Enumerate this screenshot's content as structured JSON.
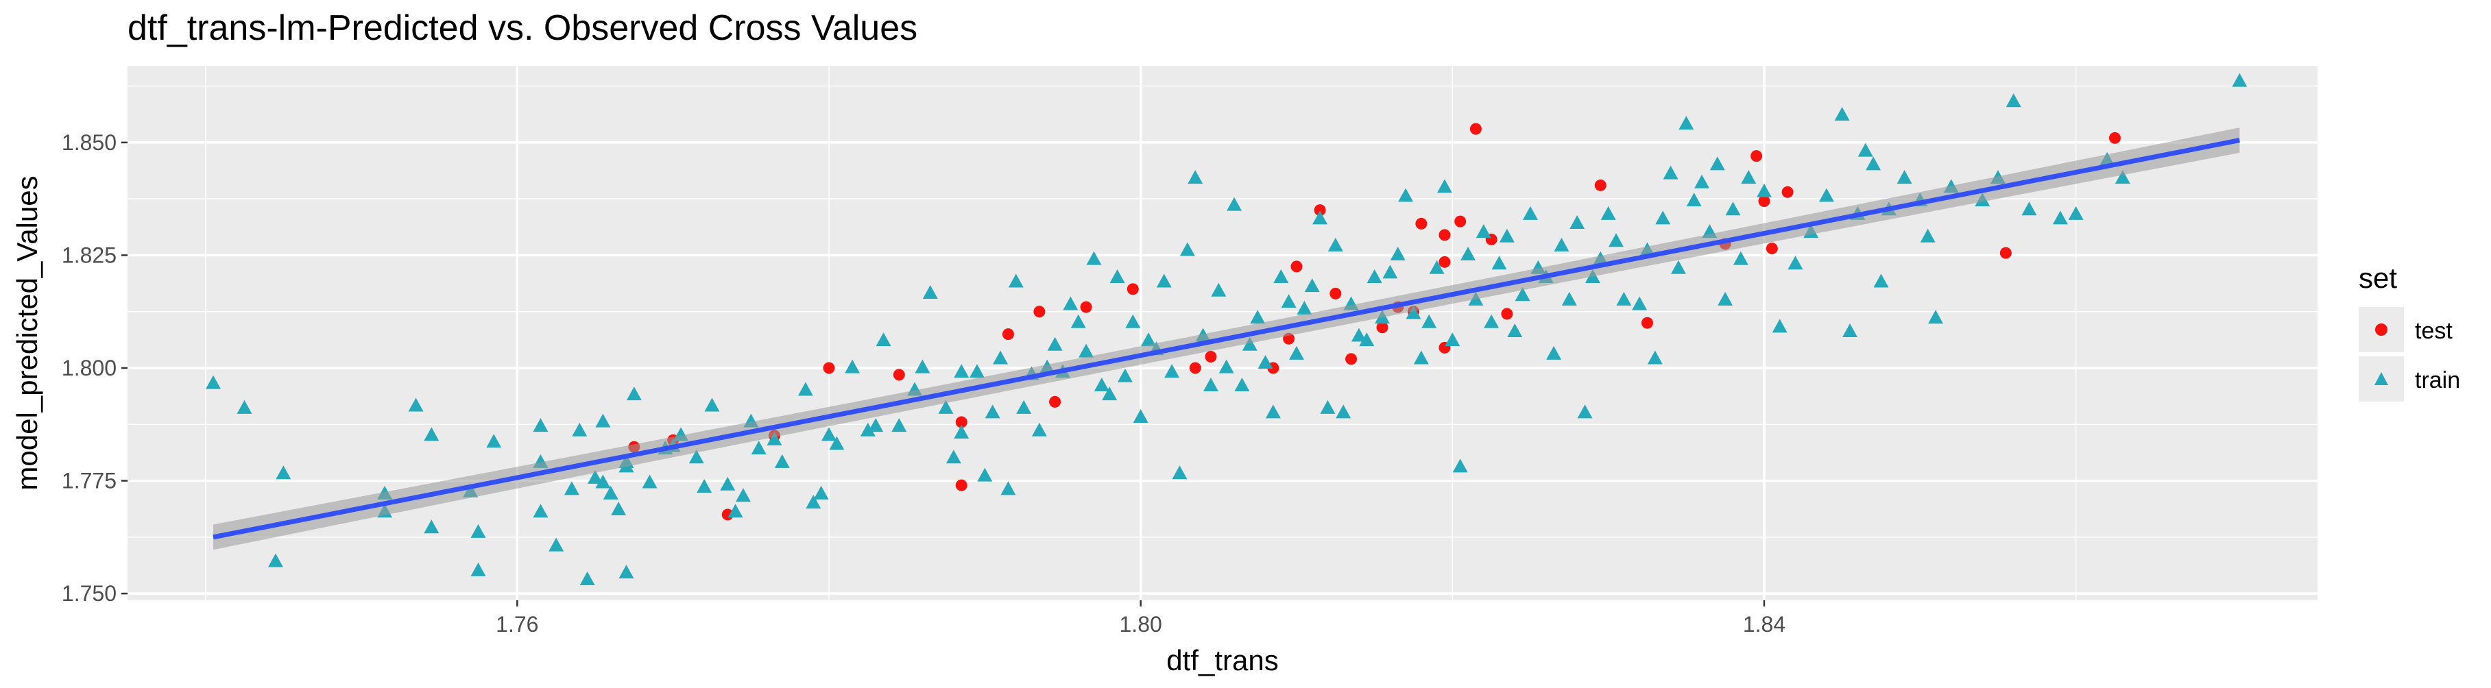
{
  "chart_data": {
    "type": "scatter",
    "title": "dtf_trans-lm-Predicted vs. Observed Cross Values",
    "xlabel": "dtf_trans",
    "ylabel": "model_predicted_Values",
    "xlim": [
      1.735,
      1.8755
    ],
    "ylim": [
      1.7485,
      1.867
    ],
    "x_ticks": [
      1.76,
      1.8,
      1.84
    ],
    "x_tick_labels": [
      "1.76",
      "1.80",
      "1.84"
    ],
    "y_ticks": [
      1.75,
      1.775,
      1.8,
      1.825,
      1.85
    ],
    "y_tick_labels": [
      "1.750",
      "1.775",
      "1.800",
      "1.825",
      "1.850"
    ],
    "grid": true,
    "legend": {
      "title": "set",
      "position": "right"
    },
    "fit_line": {
      "method": "lm",
      "x": [
        1.7405,
        1.8705
      ],
      "y": [
        1.7625,
        1.8505
      ],
      "color": "#3350F5",
      "band_halfwidth": 0.0028
    },
    "series": [
      {
        "name": "test",
        "marker": "circle",
        "color": "#F8120E",
        "points": [
          [
            1.7675,
            1.7825
          ],
          [
            1.77,
            1.784
          ],
          [
            1.7735,
            1.7675
          ],
          [
            1.7765,
            1.785
          ],
          [
            1.78,
            1.8
          ],
          [
            1.7845,
            1.7985
          ],
          [
            1.7885,
            1.774
          ],
          [
            1.7885,
            1.788
          ],
          [
            1.7915,
            1.8075
          ],
          [
            1.7935,
            1.8125
          ],
          [
            1.7945,
            1.7925
          ],
          [
            1.7965,
            1.8135
          ],
          [
            1.7995,
            1.8175
          ],
          [
            1.8035,
            1.8
          ],
          [
            1.8045,
            1.8025
          ],
          [
            1.8085,
            1.8
          ],
          [
            1.8095,
            1.8065
          ],
          [
            1.81,
            1.8225
          ],
          [
            1.8115,
            1.835
          ],
          [
            1.8125,
            1.8165
          ],
          [
            1.8135,
            1.802
          ],
          [
            1.8155,
            1.809
          ],
          [
            1.8165,
            1.8135
          ],
          [
            1.8175,
            1.8125
          ],
          [
            1.818,
            1.832
          ],
          [
            1.8195,
            1.8045
          ],
          [
            1.8195,
            1.8235
          ],
          [
            1.8195,
            1.8295
          ],
          [
            1.8205,
            1.8325
          ],
          [
            1.8215,
            1.853
          ],
          [
            1.8225,
            1.8285
          ],
          [
            1.8235,
            1.812
          ],
          [
            1.8295,
            1.8405
          ],
          [
            1.8325,
            1.81
          ],
          [
            1.8375,
            1.8275
          ],
          [
            1.8395,
            1.847
          ],
          [
            1.84,
            1.837
          ],
          [
            1.8405,
            1.8265
          ],
          [
            1.8415,
            1.839
          ],
          [
            1.8555,
            1.8255
          ],
          [
            1.8625,
            1.851
          ]
        ]
      },
      {
        "name": "train",
        "marker": "triangle",
        "color": "#24A9BB",
        "points": [
          [
            1.7405,
            1.7965
          ],
          [
            1.7425,
            1.791
          ],
          [
            1.7445,
            1.757
          ],
          [
            1.745,
            1.7765
          ],
          [
            1.7515,
            1.772
          ],
          [
            1.7515,
            1.768
          ],
          [
            1.7535,
            1.7915
          ],
          [
            1.7545,
            1.785
          ],
          [
            1.7545,
            1.7645
          ],
          [
            1.757,
            1.7725
          ],
          [
            1.7575,
            1.7635
          ],
          [
            1.7575,
            1.755
          ],
          [
            1.7585,
            1.7835
          ],
          [
            1.7615,
            1.787
          ],
          [
            1.7615,
            1.779
          ],
          [
            1.7615,
            1.768
          ],
          [
            1.7625,
            1.7605
          ],
          [
            1.7635,
            1.773
          ],
          [
            1.764,
            1.786
          ],
          [
            1.7645,
            1.753
          ],
          [
            1.765,
            1.7755
          ],
          [
            1.7655,
            1.7745
          ],
          [
            1.7655,
            1.788
          ],
          [
            1.766,
            1.772
          ],
          [
            1.7665,
            1.7685
          ],
          [
            1.767,
            1.778
          ],
          [
            1.767,
            1.779
          ],
          [
            1.767,
            1.7545
          ],
          [
            1.7675,
            1.794
          ],
          [
            1.7685,
            1.7745
          ],
          [
            1.7695,
            1.782
          ],
          [
            1.77,
            1.7825
          ],
          [
            1.7705,
            1.785
          ],
          [
            1.7715,
            1.78
          ],
          [
            1.772,
            1.7735
          ],
          [
            1.7725,
            1.7915
          ],
          [
            1.7735,
            1.774
          ],
          [
            1.774,
            1.768
          ],
          [
            1.7745,
            1.7715
          ],
          [
            1.775,
            1.788
          ],
          [
            1.7755,
            1.782
          ],
          [
            1.7765,
            1.784
          ],
          [
            1.777,
            1.779
          ],
          [
            1.7785,
            1.795
          ],
          [
            1.779,
            1.77
          ],
          [
            1.7795,
            1.772
          ],
          [
            1.78,
            1.785
          ],
          [
            1.7805,
            1.783
          ],
          [
            1.7815,
            1.8
          ],
          [
            1.7825,
            1.786
          ],
          [
            1.783,
            1.787
          ],
          [
            1.7835,
            1.806
          ],
          [
            1.7845,
            1.787
          ],
          [
            1.7855,
            1.795
          ],
          [
            1.786,
            1.8
          ],
          [
            1.7865,
            1.8165
          ],
          [
            1.7875,
            1.791
          ],
          [
            1.788,
            1.78
          ],
          [
            1.7885,
            1.799
          ],
          [
            1.7885,
            1.7855
          ],
          [
            1.7895,
            1.799
          ],
          [
            1.79,
            1.776
          ],
          [
            1.7905,
            1.79
          ],
          [
            1.791,
            1.802
          ],
          [
            1.7915,
            1.773
          ],
          [
            1.792,
            1.819
          ],
          [
            1.7925,
            1.791
          ],
          [
            1.793,
            1.7985
          ],
          [
            1.7935,
            1.786
          ],
          [
            1.794,
            1.8
          ],
          [
            1.7945,
            1.805
          ],
          [
            1.795,
            1.799
          ],
          [
            1.7955,
            1.814
          ],
          [
            1.796,
            1.81
          ],
          [
            1.7965,
            1.8035
          ],
          [
            1.797,
            1.824
          ],
          [
            1.7975,
            1.796
          ],
          [
            1.798,
            1.794
          ],
          [
            1.7985,
            1.82
          ],
          [
            1.799,
            1.798
          ],
          [
            1.7995,
            1.81
          ],
          [
            1.8,
            1.789
          ],
          [
            1.8005,
            1.806
          ],
          [
            1.801,
            1.804
          ],
          [
            1.8015,
            1.819
          ],
          [
            1.802,
            1.799
          ],
          [
            1.8025,
            1.7765
          ],
          [
            1.803,
            1.826
          ],
          [
            1.8035,
            1.842
          ],
          [
            1.804,
            1.807
          ],
          [
            1.8045,
            1.796
          ],
          [
            1.805,
            1.817
          ],
          [
            1.8055,
            1.8
          ],
          [
            1.806,
            1.836
          ],
          [
            1.8065,
            1.796
          ],
          [
            1.807,
            1.805
          ],
          [
            1.8075,
            1.811
          ],
          [
            1.808,
            1.801
          ],
          [
            1.8085,
            1.79
          ],
          [
            1.809,
            1.82
          ],
          [
            1.8095,
            1.8145
          ],
          [
            1.81,
            1.803
          ],
          [
            1.8105,
            1.813
          ],
          [
            1.811,
            1.818
          ],
          [
            1.8115,
            1.833
          ],
          [
            1.812,
            1.791
          ],
          [
            1.8125,
            1.827
          ],
          [
            1.813,
            1.79
          ],
          [
            1.8135,
            1.814
          ],
          [
            1.814,
            1.807
          ],
          [
            1.8145,
            1.806
          ],
          [
            1.815,
            1.82
          ],
          [
            1.8155,
            1.811
          ],
          [
            1.816,
            1.821
          ],
          [
            1.8165,
            1.825
          ],
          [
            1.817,
            1.838
          ],
          [
            1.8175,
            1.812
          ],
          [
            1.818,
            1.802
          ],
          [
            1.8185,
            1.81
          ],
          [
            1.819,
            1.822
          ],
          [
            1.8195,
            1.84
          ],
          [
            1.82,
            1.806
          ],
          [
            1.8205,
            1.778
          ],
          [
            1.821,
            1.825
          ],
          [
            1.8215,
            1.815
          ],
          [
            1.822,
            1.83
          ],
          [
            1.8225,
            1.81
          ],
          [
            1.823,
            1.823
          ],
          [
            1.8235,
            1.829
          ],
          [
            1.824,
            1.808
          ],
          [
            1.8245,
            1.816
          ],
          [
            1.825,
            1.834
          ],
          [
            1.8255,
            1.822
          ],
          [
            1.826,
            1.82
          ],
          [
            1.8265,
            1.803
          ],
          [
            1.827,
            1.827
          ],
          [
            1.8275,
            1.815
          ],
          [
            1.828,
            1.832
          ],
          [
            1.8285,
            1.79
          ],
          [
            1.829,
            1.82
          ],
          [
            1.8295,
            1.824
          ],
          [
            1.83,
            1.834
          ],
          [
            1.8305,
            1.828
          ],
          [
            1.831,
            1.815
          ],
          [
            1.832,
            1.814
          ],
          [
            1.8325,
            1.826
          ],
          [
            1.833,
            1.802
          ],
          [
            1.8335,
            1.833
          ],
          [
            1.834,
            1.843
          ],
          [
            1.8345,
            1.822
          ],
          [
            1.835,
            1.854
          ],
          [
            1.8355,
            1.837
          ],
          [
            1.836,
            1.841
          ],
          [
            1.8365,
            1.83
          ],
          [
            1.837,
            1.845
          ],
          [
            1.8375,
            1.815
          ],
          [
            1.838,
            1.835
          ],
          [
            1.8385,
            1.824
          ],
          [
            1.839,
            1.842
          ],
          [
            1.84,
            1.839
          ],
          [
            1.841,
            1.809
          ],
          [
            1.842,
            1.823
          ],
          [
            1.843,
            1.83
          ],
          [
            1.844,
            1.838
          ],
          [
            1.845,
            1.856
          ],
          [
            1.8455,
            1.808
          ],
          [
            1.846,
            1.834
          ],
          [
            1.8465,
            1.848
          ],
          [
            1.847,
            1.845
          ],
          [
            1.8475,
            1.819
          ],
          [
            1.848,
            1.835
          ],
          [
            1.849,
            1.842
          ],
          [
            1.85,
            1.837
          ],
          [
            1.8505,
            1.829
          ],
          [
            1.851,
            1.811
          ],
          [
            1.852,
            1.84
          ],
          [
            1.854,
            1.837
          ],
          [
            1.855,
            1.842
          ],
          [
            1.856,
            1.859
          ],
          [
            1.857,
            1.835
          ],
          [
            1.859,
            1.833
          ],
          [
            1.86,
            1.834
          ],
          [
            1.862,
            1.846
          ],
          [
            1.863,
            1.842
          ],
          [
            1.8705,
            1.8635
          ]
        ]
      }
    ]
  }
}
